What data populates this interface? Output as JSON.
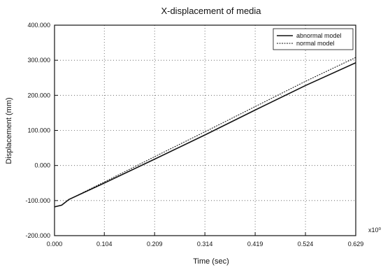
{
  "chart_data": {
    "type": "line",
    "title": "X-displacement of media",
    "xlabel": "Time (sec)",
    "ylabel": "Displacement (mm)",
    "x_exponent_label": "x10⁰",
    "xlim": [
      0,
      0.629
    ],
    "ylim": [
      -200,
      400
    ],
    "x_ticks": [
      0,
      0.104,
      0.209,
      0.314,
      0.419,
      0.524,
      0.629
    ],
    "x_tick_labels": [
      "0.000",
      "0.104",
      "0.209",
      "0.314",
      "0.419",
      "0.524",
      "0.629"
    ],
    "y_ticks": [
      -200,
      -100,
      0,
      100,
      200,
      300,
      400
    ],
    "y_tick_labels": [
      "-200.000",
      "-100.000",
      "0.000",
      "100.000",
      "200.000",
      "300.000",
      "400.000"
    ],
    "grid": true,
    "legend_position": "top-right",
    "series": [
      {
        "name": "abnormal model",
        "style": "solid",
        "color": "#111111",
        "x": [
          0,
          0.015,
          0.03,
          0.104,
          0.209,
          0.314,
          0.419,
          0.524,
          0.629
        ],
        "y": [
          -118,
          -113,
          -97,
          -50,
          18,
          87,
          158,
          228,
          293
        ]
      },
      {
        "name": "normal model",
        "style": "dotted",
        "color": "#111111",
        "x": [
          0,
          0.015,
          0.03,
          0.104,
          0.209,
          0.314,
          0.419,
          0.524,
          0.629
        ],
        "y": [
          -118,
          -113,
          -97,
          -47,
          25,
          96,
          168,
          240,
          308
        ]
      }
    ]
  }
}
